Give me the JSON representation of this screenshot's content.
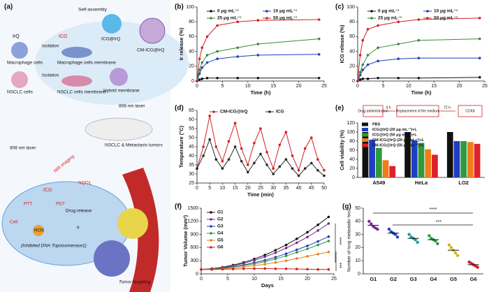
{
  "panel_a": {
    "label": "(a)",
    "labels": [
      "IrQ",
      "ICG",
      "Self-assembly",
      "ICG@IrQ",
      "Macrophage cells",
      "Isolation",
      "Macrophage cells membrane",
      "NSCLC cells",
      "Isolation",
      "NSCLC cells membrane",
      "Hybrid membrane",
      "CM-ICG@IrQ",
      "808 nm laser",
      "NSCLC & Metastasis tumors",
      "808 nm laser",
      "NIR imaging",
      "ICG",
      "NQO1",
      "PTT",
      "PDT",
      "Drug release",
      "Cell",
      "ROS",
      "Ir",
      "(Inhibited DNA Topoisomerase1)",
      "Tumor targeting"
    ]
  },
  "chart_data": [
    {
      "panel_label": "(b)",
      "type": "line",
      "xlabel": "Time (h)",
      "ylabel": "Ir release (%)",
      "x": [
        0,
        0.5,
        1,
        2,
        4,
        8,
        12,
        24
      ],
      "xlim": [
        0,
        25
      ],
      "xticks": [
        0,
        5,
        10,
        15,
        20,
        25
      ],
      "ylim": [
        0,
        100
      ],
      "yticks": [
        0,
        20,
        40,
        60,
        80,
        100
      ],
      "series": [
        {
          "name": "0 μg mL⁻¹",
          "color": "#111111",
          "values": [
            0,
            2,
            3,
            4,
            4,
            4,
            4,
            4
          ]
        },
        {
          "name": "10 μg mL⁻¹",
          "color": "#1f3fbf",
          "values": [
            0,
            10,
            18,
            25,
            30,
            33,
            35,
            36
          ]
        },
        {
          "name": "25 μg mL⁻¹",
          "color": "#3a8a3a",
          "values": [
            0,
            15,
            25,
            35,
            40,
            45,
            50,
            57
          ]
        },
        {
          "name": "50 μg mL⁻¹",
          "color": "#d42020",
          "values": [
            0,
            30,
            45,
            60,
            75,
            80,
            82,
            83
          ]
        }
      ]
    },
    {
      "panel_label": "(c)",
      "type": "line",
      "xlabel": "Time (h)",
      "ylabel": "ICG release (%)",
      "x": [
        0,
        0.5,
        1,
        2,
        4,
        8,
        12,
        24
      ],
      "xlim": [
        0,
        25
      ],
      "xticks": [
        0,
        5,
        10,
        15,
        20,
        25
      ],
      "ylim": [
        0,
        100
      ],
      "yticks": [
        0,
        20,
        40,
        60,
        80,
        100
      ],
      "series": [
        {
          "name": "0 μg mL⁻¹",
          "color": "#111111",
          "values": [
            0,
            2,
            3,
            3,
            4,
            4,
            4,
            5
          ]
        },
        {
          "name": "10 μg mL⁻¹",
          "color": "#1f3fbf",
          "values": [
            0,
            8,
            15,
            22,
            27,
            30,
            31,
            31
          ]
        },
        {
          "name": "25 μg mL⁻¹",
          "color": "#3a8a3a",
          "values": [
            0,
            12,
            22,
            35,
            45,
            50,
            55,
            57
          ]
        },
        {
          "name": "50 μg mL⁻¹",
          "color": "#d42020",
          "values": [
            0,
            35,
            55,
            70,
            75,
            80,
            83,
            85
          ]
        }
      ]
    },
    {
      "panel_label": "(d)",
      "type": "line",
      "xlabel": "Time (min)",
      "ylabel": "Temperature (°C)",
      "x": [
        0,
        2.5,
        5,
        7.5,
        10,
        12.5,
        15,
        17.5,
        20,
        22.5,
        25,
        27.5,
        30,
        32.5,
        35,
        37.5,
        40,
        42.5,
        45,
        47.5,
        50
      ],
      "xlim": [
        0,
        50
      ],
      "xticks": [
        0,
        5,
        10,
        15,
        20,
        25,
        30,
        35,
        40,
        45,
        50
      ],
      "ylim": [
        25,
        65
      ],
      "yticks": [
        25,
        30,
        35,
        40,
        45,
        50,
        55,
        60,
        65
      ],
      "series": [
        {
          "name": "CM-ICG@IrQ",
          "color": "#d42020",
          "values": [
            33,
            45,
            62,
            45,
            37,
            48,
            58,
            44,
            35,
            47,
            55,
            42,
            33,
            46,
            53,
            40,
            32,
            44,
            50,
            38,
            32
          ]
        },
        {
          "name": "ICG",
          "color": "#2a2a2a",
          "values": [
            33,
            40,
            49,
            38,
            33,
            38,
            45,
            37,
            31,
            36,
            41,
            35,
            30,
            34,
            38,
            33,
            29,
            33,
            36,
            32,
            29
          ]
        }
      ]
    },
    {
      "panel_label": "(e)",
      "type": "grouped_bar",
      "ylabel": "Cell viability (%)",
      "flow": [
        "Drug administration",
        "4 h",
        "Replacement of the medium",
        "72 h",
        "CCK8"
      ],
      "categories": [
        "A549",
        "HeLa",
        "LO2"
      ],
      "ylim": [
        0,
        120
      ],
      "yticks": [
        0,
        20,
        40,
        60,
        80,
        100,
        120
      ],
      "series": [
        {
          "name": "PBS",
          "color": "#111111",
          "values": [
            100,
            100,
            100
          ]
        },
        {
          "name": "ICG@IrQ (20 μg mL⁻¹)+L",
          "color": "#1f3fbf",
          "values": [
            83,
            82,
            80
          ]
        },
        {
          "name": "ICG@IrQ (50 μg mL⁻¹)+L",
          "color": "#2e9a3a",
          "values": [
            65,
            76,
            80
          ]
        },
        {
          "name": "CM-ICG@IrQ (20 μg mL⁻¹)+L",
          "color": "#f07d1a",
          "values": [
            38,
            62,
            78
          ]
        },
        {
          "name": "CM-ICG@IrQ (50 μg mL⁻¹)+L",
          "color": "#e0202a",
          "values": [
            25,
            50,
            74
          ]
        }
      ]
    },
    {
      "panel_label": "(f)",
      "type": "line",
      "xlabel": "Days",
      "ylabel": "Tumor Volume (mm³)",
      "x": [
        0,
        2,
        4,
        6,
        8,
        10,
        12,
        14,
        16,
        18,
        20,
        22,
        24
      ],
      "xlim": [
        0,
        25
      ],
      "xticks": [
        0,
        5,
        10,
        15,
        20,
        25
      ],
      "ylim": [
        0,
        1500
      ],
      "yticks": [
        0,
        300,
        600,
        900,
        1200,
        1500
      ],
      "annotations": [
        "****",
        "***"
      ],
      "series": [
        {
          "name": "G1",
          "color": "#111111",
          "values": [
            100,
            120,
            150,
            200,
            260,
            340,
            430,
            540,
            660,
            800,
            950,
            1120,
            1300
          ]
        },
        {
          "name": "G2",
          "color": "#7a2a9a",
          "values": [
            100,
            115,
            140,
            185,
            240,
            310,
            390,
            480,
            590,
            710,
            840,
            990,
            1150
          ]
        },
        {
          "name": "G3",
          "color": "#1f3fbf",
          "values": [
            100,
            110,
            130,
            165,
            205,
            255,
            310,
            380,
            460,
            550,
            640,
            740,
            850
          ]
        },
        {
          "name": "G4",
          "color": "#2e9a3a",
          "values": [
            100,
            110,
            125,
            155,
            190,
            230,
            280,
            340,
            410,
            490,
            570,
            660,
            750
          ]
        },
        {
          "name": "G5",
          "color": "#f07d1a",
          "values": [
            100,
            105,
            115,
            135,
            160,
            190,
            220,
            260,
            300,
            350,
            400,
            450,
            500
          ]
        },
        {
          "name": "G6",
          "color": "#d42020",
          "values": [
            100,
            100,
            105,
            110,
            115,
            120,
            120,
            115,
            115,
            110,
            105,
            100,
            100
          ]
        }
      ]
    },
    {
      "panel_label": "(g)",
      "type": "dot",
      "ylabel": "Number of lung metastatic foci",
      "categories": [
        "G1",
        "G2",
        "G3",
        "G4",
        "G5",
        "G6"
      ],
      "ylim": [
        0,
        50
      ],
      "yticks": [
        0,
        10,
        20,
        30,
        40,
        50
      ],
      "colors": [
        "#7a2a9a",
        "#1f3fbf",
        "#1a9aa0",
        "#2e9a3a",
        "#d4b21a",
        "#d42020"
      ],
      "annotations": [
        "****",
        "***"
      ],
      "values": [
        37,
        31,
        27,
        26,
        18,
        7
      ],
      "points": [
        [
          40,
          38,
          36,
          35,
          34
        ],
        [
          34,
          32,
          31,
          30,
          28
        ],
        [
          30,
          28,
          27,
          26,
          24
        ],
        [
          29,
          27,
          26,
          25,
          23
        ],
        [
          22,
          20,
          18,
          16,
          14
        ],
        [
          9,
          8,
          7,
          6,
          5
        ]
      ]
    }
  ]
}
